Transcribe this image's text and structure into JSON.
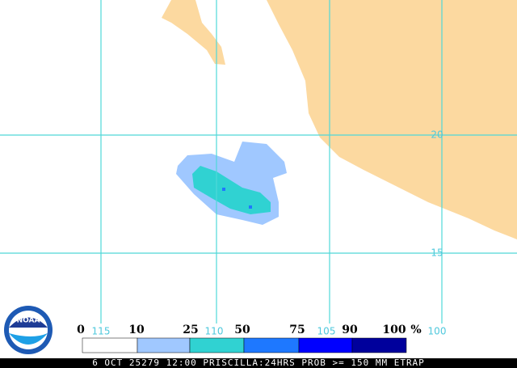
{
  "map": {
    "lat_labels": [
      "20",
      "15"
    ],
    "lon_labels": [
      "115",
      "110",
      "105",
      "100"
    ],
    "logo": "NOAA",
    "legend": {
      "labels": [
        "0",
        "10",
        "25",
        "50",
        "75",
        "90",
        "100"
      ],
      "unit": "%",
      "colors": [
        "#ffffff",
        "#a0c8ff",
        "#30d2d2",
        "#1e78ff",
        "#0000ff",
        "#00009c"
      ]
    },
    "caption": "6 OCT 25279 12:00 PRISCILLA:24HRS PROB >= 150 MM ETRAP"
  }
}
